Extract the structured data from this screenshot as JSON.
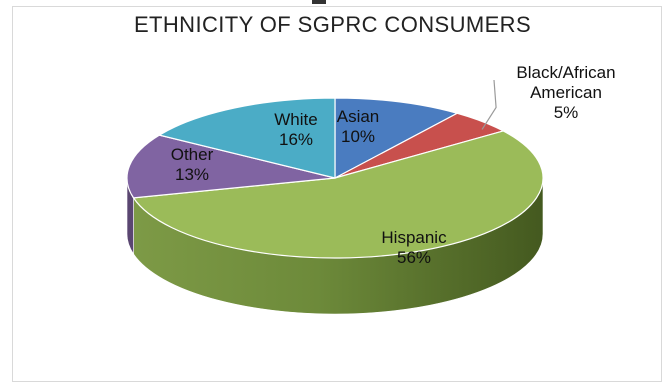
{
  "chart_data": {
    "type": "pie",
    "title": "ETHNICITY OF SGPRC CONSUMERS",
    "slices": [
      {
        "label": "Asian",
        "value": 10,
        "value_text": "10%",
        "color": "#4a7cc0"
      },
      {
        "label": "Black/African American",
        "label_lines": [
          "Black/African",
          "American"
        ],
        "value": 5,
        "value_text": "5%",
        "color": "#c8504d"
      },
      {
        "label": "Hispanic",
        "value": 56,
        "value_text": "56%",
        "color": "#9bbb59"
      },
      {
        "label": "Other",
        "value": 13,
        "value_text": "13%",
        "color": "#8064a2"
      },
      {
        "label": "White",
        "value": 16,
        "value_text": "16%",
        "color": "#4bacc6"
      }
    ],
    "style": "3d",
    "legend": "none"
  }
}
